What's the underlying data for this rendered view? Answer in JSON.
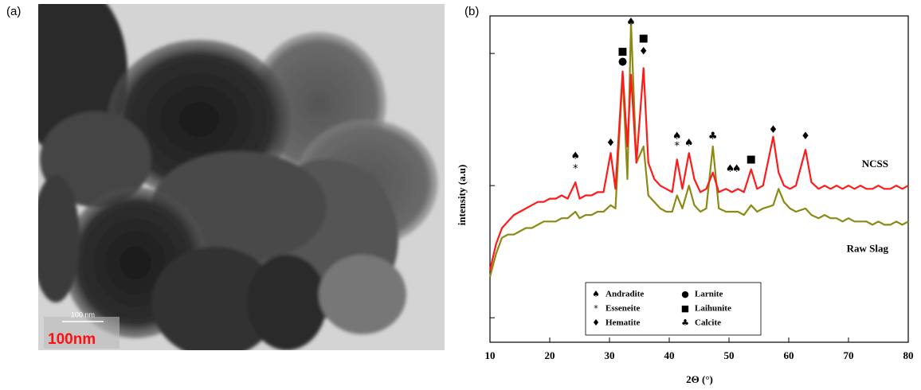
{
  "image_panel": {
    "panel_label": "(a)",
    "scale_text_small": "100 nm",
    "scale_text": "100nm"
  },
  "chart_data": {
    "type": "line",
    "panel_label": "(b)",
    "x_label": "2Θ (°)",
    "y_label": "intensity (a.u)",
    "xlim": [
      10,
      80
    ],
    "xticks": [
      10,
      20,
      30,
      40,
      50,
      60,
      70,
      80
    ],
    "ylim": [
      0,
      100
    ],
    "yticks": [
      7.5,
      48,
      88.5
    ],
    "x": [
      10,
      11,
      12,
      13,
      14,
      15,
      16,
      17,
      18,
      19,
      20,
      21,
      22,
      23,
      24.3,
      25,
      26,
      27,
      28,
      29,
      30.2,
      31,
      32.2,
      33,
      33.6,
      34.5,
      35.7,
      36.5,
      37.5,
      38.5,
      39.5,
      40.5,
      41.3,
      42.2,
      43.3,
      44.2,
      45.2,
      46.2,
      47.3,
      48.3,
      49.5,
      50.5,
      51.5,
      52.5,
      53.7,
      54.7,
      55.7,
      57.4,
      58.3,
      59.2,
      60.2,
      61.2,
      62.8,
      63.8,
      65,
      66,
      67,
      68,
      69,
      70,
      71,
      72,
      73,
      74,
      75,
      76,
      77,
      78,
      79,
      80
    ],
    "series": [
      {
        "name": "NCSS",
        "color": "#ff1a1a",
        "values": [
          22,
          30,
          35,
          37,
          39,
          40,
          41,
          42,
          43,
          43,
          44,
          44,
          45,
          44,
          49,
          44,
          45,
          45,
          46,
          46,
          58,
          47,
          83,
          60,
          82,
          55,
          84,
          55,
          50,
          48,
          47,
          46,
          56,
          47,
          58,
          50,
          46,
          47,
          52,
          46,
          47,
          46,
          47,
          46,
          53,
          47,
          48,
          63,
          52,
          48,
          47,
          48,
          59,
          49,
          47,
          48,
          47,
          48,
          47,
          48,
          47,
          48,
          47,
          47,
          48,
          47,
          47,
          48,
          47,
          48
        ]
      },
      {
        "name": "Raw Slag",
        "color": "#8a8a14",
        "values": [
          20,
          27,
          32,
          33,
          33,
          34,
          35,
          35,
          36,
          37,
          37,
          37,
          38,
          38,
          40,
          38,
          39,
          39,
          40,
          40,
          42,
          41,
          82,
          50,
          98,
          55,
          60,
          45,
          43,
          41,
          40,
          40,
          45,
          41,
          48,
          42,
          40,
          41,
          60,
          41,
          40,
          40,
          40,
          39,
          42,
          40,
          41,
          42,
          47,
          43,
          41,
          40,
          41,
          39,
          38,
          39,
          38,
          38,
          37,
          38,
          37,
          37,
          37,
          36,
          37,
          36,
          36,
          37,
          36,
          37
        ]
      }
    ],
    "annotations": [
      {
        "text": "♠",
        "x": 24.3,
        "y": 57
      },
      {
        "text": "*",
        "x": 24.3,
        "y": 53
      },
      {
        "text": "♦",
        "x": 30.2,
        "y": 61
      },
      {
        "text": "■",
        "x": 32.2,
        "y": 89
      },
      {
        "text": "●",
        "x": 32.2,
        "y": 86
      },
      {
        "text": "♠",
        "x": 33.6,
        "y": 98
      },
      {
        "text": "■",
        "x": 35.7,
        "y": 93
      },
      {
        "text": "♦",
        "x": 35.7,
        "y": 89
      },
      {
        "text": "♠",
        "x": 41.3,
        "y": 63
      },
      {
        "text": "*",
        "x": 41.3,
        "y": 60
      },
      {
        "text": "♠",
        "x": 43.3,
        "y": 61
      },
      {
        "text": "♣",
        "x": 47.3,
        "y": 63
      },
      {
        "text": "♠",
        "x": 50.2,
        "y": 53
      },
      {
        "text": "♠",
        "x": 51.3,
        "y": 53
      },
      {
        "text": "■",
        "x": 53.7,
        "y": 56
      },
      {
        "text": "♦",
        "x": 57.4,
        "y": 65
      },
      {
        "text": "♦",
        "x": 62.8,
        "y": 63
      }
    ],
    "phase_legend": [
      {
        "symbol": "♠",
        "name": "Andradite"
      },
      {
        "symbol": "●",
        "name": "Larnite"
      },
      {
        "symbol": "*",
        "name": "Esseneite"
      },
      {
        "symbol": "■",
        "name": "Laihunite"
      },
      {
        "symbol": "♦",
        "name": "Hematite"
      },
      {
        "symbol": "♣",
        "name": "Calcite"
      }
    ]
  }
}
